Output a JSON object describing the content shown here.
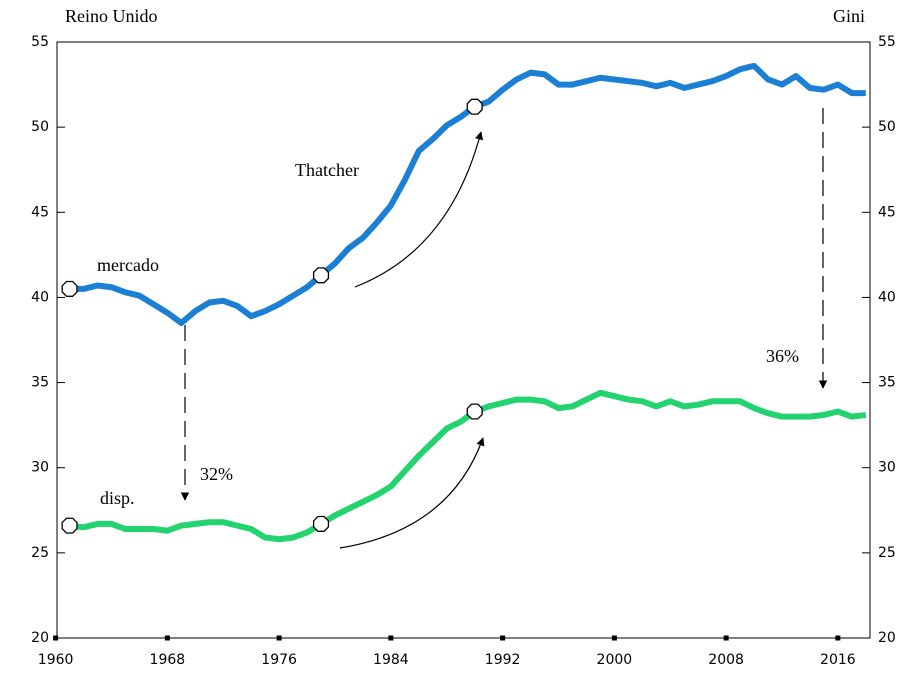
{
  "chart_data": {
    "type": "line",
    "title": "Reino Unido",
    "y2_label": "Gini",
    "annotations": [
      "mercado",
      "disp.",
      "Thatcher",
      "32%",
      "36%"
    ],
    "x": [
      1961,
      1962,
      1963,
      1964,
      1965,
      1966,
      1967,
      1968,
      1969,
      1970,
      1971,
      1972,
      1973,
      1974,
      1975,
      1976,
      1977,
      1978,
      1979,
      1980,
      1981,
      1982,
      1983,
      1984,
      1985,
      1986,
      1987,
      1988,
      1989,
      1990,
      1991,
      1992,
      1993,
      1994,
      1995,
      1996,
      1997,
      1998,
      1999,
      2000,
      2001,
      2002,
      2003,
      2004,
      2005,
      2006,
      2007,
      2008,
      2009,
      2010,
      2011,
      2012,
      2013,
      2014,
      2015,
      2016,
      2017,
      2018
    ],
    "series": [
      {
        "name": "mercado",
        "color": "#1b7fd4",
        "values": [
          40.5,
          40.5,
          40.7,
          40.6,
          40.3,
          40.1,
          39.6,
          39.1,
          38.5,
          39.2,
          39.7,
          39.8,
          39.5,
          38.9,
          39.2,
          39.6,
          40.1,
          40.6,
          41.3,
          42.0,
          42.9,
          43.5,
          44.4,
          45.4,
          46.9,
          48.6,
          49.3,
          50.1,
          50.6,
          51.2,
          51.5,
          52.2,
          52.8,
          53.2,
          53.1,
          52.5,
          52.5,
          52.7,
          52.9,
          52.8,
          52.7,
          52.6,
          52.4,
          52.6,
          52.3,
          52.5,
          52.7,
          53.0,
          53.4,
          53.6,
          52.8,
          52.5,
          53.0,
          52.3,
          52.2,
          52.5,
          52.0,
          52.0
        ]
      },
      {
        "name": "disp.",
        "color": "#22d36f",
        "values": [
          26.6,
          26.5,
          26.7,
          26.7,
          26.4,
          26.4,
          26.4,
          26.3,
          26.6,
          26.7,
          26.8,
          26.8,
          26.6,
          26.4,
          25.9,
          25.8,
          25.9,
          26.2,
          26.7,
          27.2,
          27.6,
          28.0,
          28.4,
          28.9,
          29.8,
          30.7,
          31.5,
          32.3,
          32.7,
          33.3,
          33.6,
          33.8,
          34.0,
          34.0,
          33.9,
          33.5,
          33.6,
          34.0,
          34.4,
          34.2,
          34.0,
          33.9,
          33.6,
          33.9,
          33.6,
          33.7,
          33.9,
          33.9,
          33.9,
          33.5,
          33.2,
          33.0,
          33.0,
          33.0,
          33.1,
          33.3,
          33.0,
          33.1
        ]
      }
    ],
    "xlim": [
      1960.1,
      2018.3
    ],
    "xticks": [
      1960,
      1968,
      1976,
      1984,
      1992,
      2000,
      2008,
      2016
    ],
    "ylim": [
      20,
      55
    ],
    "yticks": [
      20,
      25,
      30,
      35,
      40,
      45,
      50,
      55
    ],
    "y2lim": [
      20,
      55
    ],
    "y2ticks": [
      20,
      25,
      30,
      35,
      40,
      45,
      50,
      55
    ]
  }
}
